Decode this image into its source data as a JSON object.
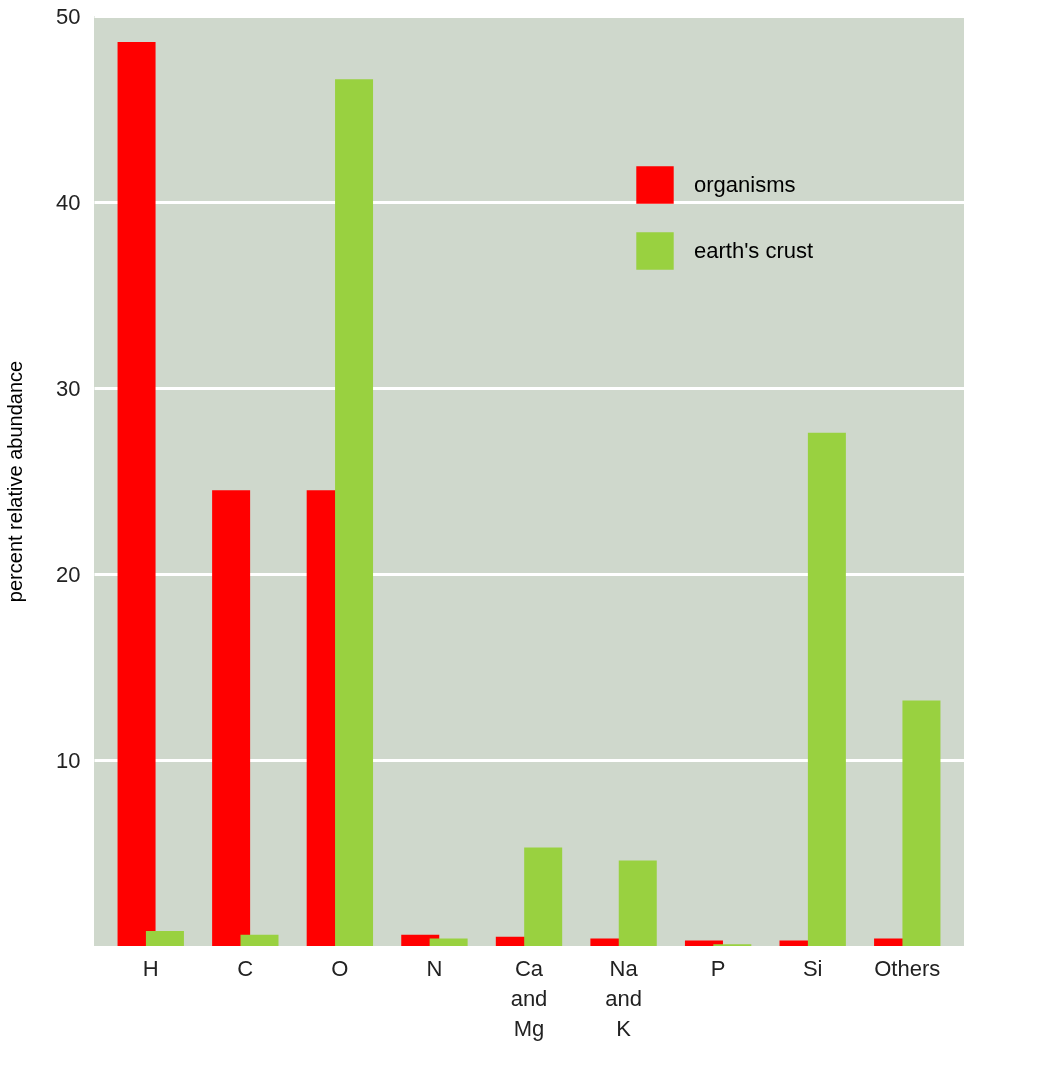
{
  "chart_data": {
    "type": "bar",
    "ylabel": "percent relative abundance",
    "categories": [
      "H",
      "C",
      "O",
      "N",
      "Ca and Mg",
      "Na and K",
      "P",
      "Si",
      "Others"
    ],
    "series": [
      {
        "name": "organisms",
        "color": "#ff0000",
        "values": [
          48.6,
          24.5,
          24.5,
          0.6,
          0.5,
          0.4,
          0.3,
          0.3,
          0.4
        ]
      },
      {
        "name": "earth's crust",
        "color": "#99d140",
        "values": [
          0.8,
          0.6,
          46.6,
          0.4,
          5.3,
          4.6,
          0.1,
          27.6,
          13.2
        ]
      }
    ],
    "ylim": [
      0,
      50
    ],
    "yticks": [
      10,
      20,
      30,
      40,
      50
    ],
    "grid": "y",
    "legend": "top right"
  }
}
